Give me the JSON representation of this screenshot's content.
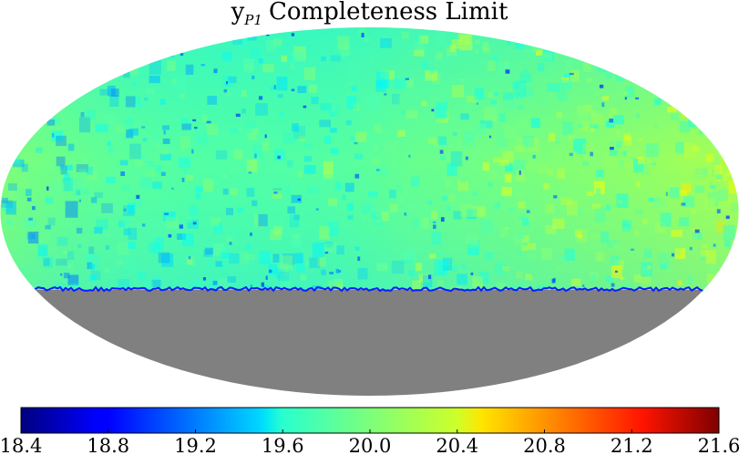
{
  "chart_data": {
    "type": "heatmap",
    "projection": "mollweide",
    "title": {
      "main": "y",
      "subscript": "P1",
      "rest": "Completeness Limit"
    },
    "colormap": "jet",
    "clim": [
      18.4,
      21.6
    ],
    "colorbar": {
      "orientation": "horizontal",
      "placement": "bottom",
      "ticks": [
        "18.4",
        "18.8",
        "19.2",
        "19.6",
        "20.0",
        "20.4",
        "20.8",
        "21.2",
        "21.6"
      ],
      "tick_values": [
        18.4,
        18.8,
        19.2,
        19.6,
        20.0,
        20.4,
        20.8,
        21.2,
        21.6
      ]
    },
    "coverage": {
      "southern_dec_limit": -30,
      "no_data_color": "#808080"
    },
    "typical_value": 20.0,
    "value_range_observed": [
      19.0,
      20.5
    ]
  }
}
